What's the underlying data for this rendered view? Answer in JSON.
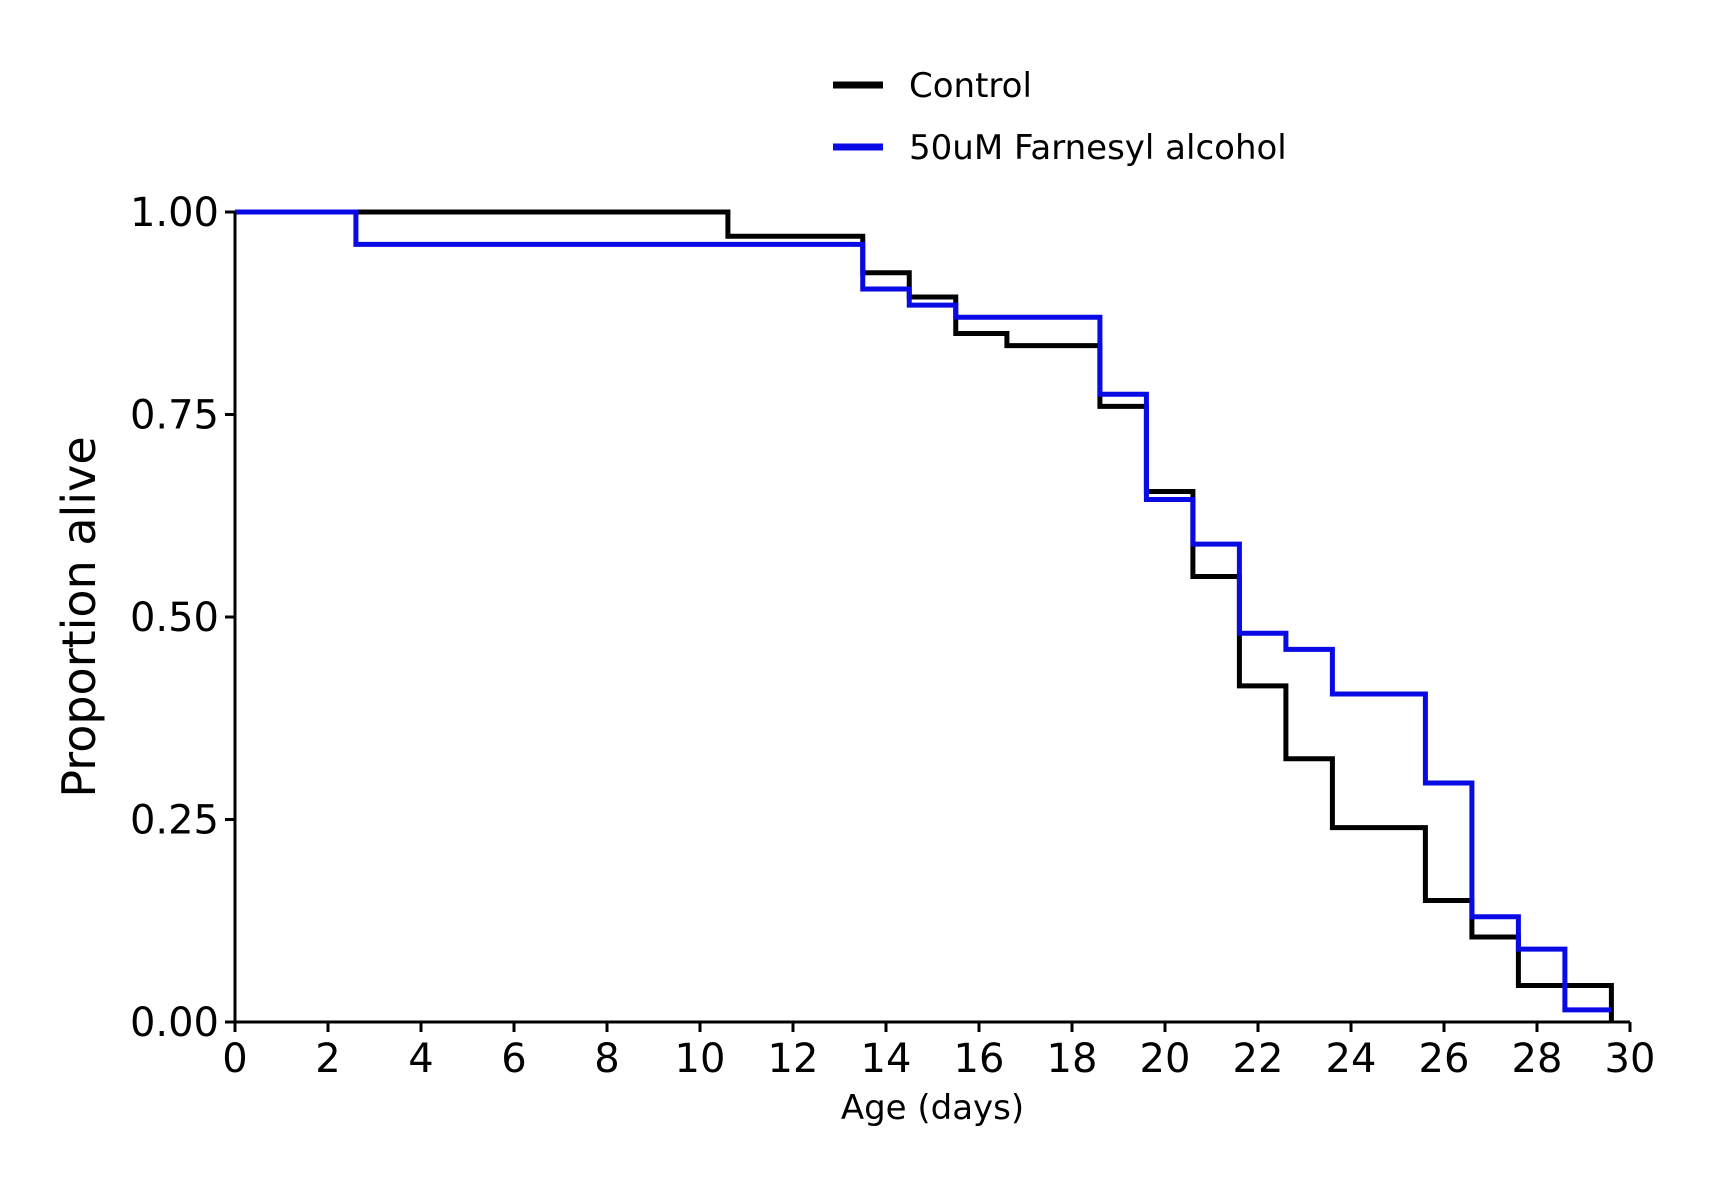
{
  "chart_data": {
    "type": "line",
    "step": "post",
    "xlabel": "Age (days)",
    "ylabel": "Proportion alive",
    "xlim": [
      0,
      30
    ],
    "ylim": [
      0,
      1
    ],
    "x_ticks": [
      0,
      2,
      4,
      6,
      8,
      10,
      12,
      14,
      16,
      18,
      20,
      22,
      24,
      26,
      28,
      30
    ],
    "x_tick_labels": [
      "0",
      "2",
      "4",
      "6",
      "8",
      "10",
      "12",
      "14",
      "16",
      "18",
      "20",
      "22",
      "24",
      "26",
      "28",
      "30"
    ],
    "y_ticks": [
      0,
      0.25,
      0.5,
      0.75,
      1
    ],
    "y_tick_labels": [
      "0.00",
      "0.25",
      "0.50",
      "0.75",
      "1.00"
    ],
    "grid": false,
    "legend_position": "top-center",
    "series": [
      {
        "name": "Control",
        "color": "#000000",
        "x": [
          0,
          10.6,
          13.5,
          14.5,
          15.5,
          16.6,
          18.6,
          19.6,
          20.6,
          21.6,
          22.6,
          23.6,
          25.6,
          26.6,
          27.6,
          29.6
        ],
        "y": [
          1.0,
          0.97,
          0.925,
          0.895,
          0.85,
          0.835,
          0.76,
          0.655,
          0.55,
          0.415,
          0.325,
          0.24,
          0.15,
          0.105,
          0.045,
          0.0
        ]
      },
      {
        "name": "50uM Farnesyl alcohol",
        "color": "#0a0ae6",
        "x": [
          0,
          2.6,
          13.5,
          14.5,
          15.5,
          18.6,
          19.6,
          20.6,
          21.6,
          22.6,
          23.6,
          25.6,
          26.6,
          27.6,
          28.6,
          29.6
        ],
        "y": [
          1.0,
          0.96,
          0.905,
          0.885,
          0.87,
          0.775,
          0.645,
          0.59,
          0.48,
          0.46,
          0.405,
          0.295,
          0.13,
          0.09,
          0.015,
          0.015
        ]
      }
    ]
  }
}
